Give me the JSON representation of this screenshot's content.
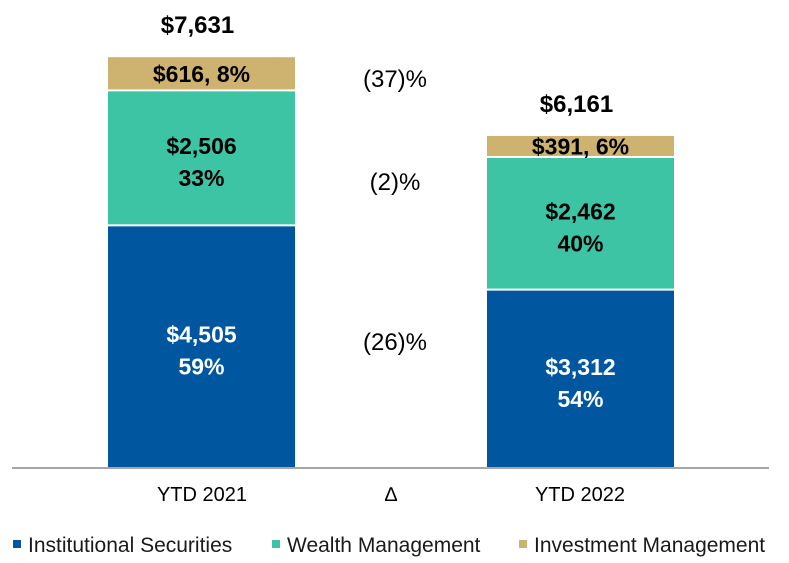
{
  "chart_data": {
    "type": "bar",
    "stacked": true,
    "categories": [
      "YTD 2021",
      "YTD 2022"
    ],
    "delta_symbol": "∆",
    "series": [
      {
        "name": "Institutional Securities",
        "color": "#0057A0",
        "text_color": "#ffffff",
        "values": [
          4505,
          3312
        ],
        "value_labels": [
          "$4,505",
          "$3,312"
        ],
        "pct_labels": [
          "59%",
          "54%"
        ],
        "delta": "(26)%"
      },
      {
        "name": "Wealth Management",
        "color": "#3CC4A4",
        "text_color": "#000000",
        "values": [
          2506,
          2462
        ],
        "value_labels": [
          "$2,506",
          "$2,462"
        ],
        "pct_labels": [
          "33%",
          "40%"
        ],
        "delta": "(2)%"
      },
      {
        "name": "Investment Management",
        "color": "#CDB36F",
        "text_color": "#000000",
        "values": [
          616,
          391
        ],
        "labels": [
          "$616, 8%",
          "$391, 6%"
        ],
        "delta": "(37)%"
      }
    ],
    "totals": [
      7631,
      6161
    ],
    "total_labels": [
      "$7,631",
      "$6,161"
    ],
    "legend_position": "bottom",
    "grid": false,
    "ylim": [
      0,
      7631
    ]
  }
}
